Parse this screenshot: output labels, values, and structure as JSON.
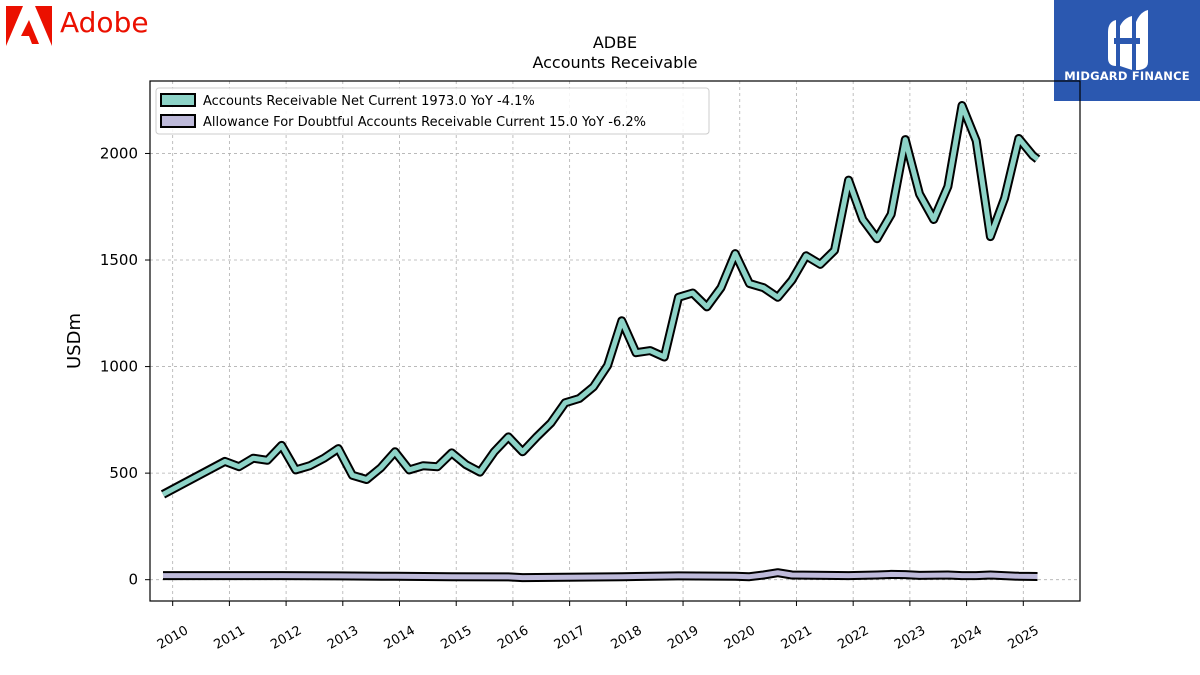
{
  "brand": {
    "company_logo_text": "Adobe",
    "company_color": "#eb1000",
    "publisher_logo_text": "MIDGARD FINANCE",
    "publisher_color": "#2b58b0"
  },
  "chart_data": {
    "type": "line",
    "title": "ADBE",
    "subtitle": "Accounts Receivable",
    "ylabel": "USDm",
    "xlabel": "",
    "xlim": [
      2009.6,
      2026.0
    ],
    "ylim": [
      -100,
      2340
    ],
    "yticks": [
      0,
      500,
      1000,
      1500,
      2000
    ],
    "xticks": [
      "2010",
      "2011",
      "2012",
      "2013",
      "2014",
      "2015",
      "2016",
      "2017",
      "2018",
      "2019",
      "2020",
      "2021",
      "2022",
      "2023",
      "2024",
      "2025"
    ],
    "grid": true,
    "legend_position": "top-left",
    "series": [
      {
        "name": "Accounts Receivable Net Current  1973.0 YoY -4.1%",
        "color": "#8dd3c7",
        "x": [
          2009.83,
          2010.92,
          2011.17,
          2011.42,
          2011.67,
          2011.92,
          2012.17,
          2012.42,
          2012.67,
          2012.92,
          2013.17,
          2013.42,
          2013.67,
          2013.92,
          2014.17,
          2014.42,
          2014.67,
          2014.92,
          2015.17,
          2015.42,
          2015.67,
          2015.92,
          2016.17,
          2016.42,
          2016.67,
          2016.92,
          2017.17,
          2017.42,
          2017.67,
          2017.92,
          2018.17,
          2018.42,
          2018.67,
          2018.92,
          2019.17,
          2019.42,
          2019.67,
          2019.92,
          2020.17,
          2020.42,
          2020.67,
          2020.92,
          2021.17,
          2021.42,
          2021.67,
          2021.92,
          2022.17,
          2022.42,
          2022.67,
          2022.92,
          2023.17,
          2023.42,
          2023.67,
          2023.92,
          2024.17,
          2024.42,
          2024.67,
          2024.92,
          2025.17,
          2025.25
        ],
        "values": [
          400,
          555,
          530,
          570,
          560,
          630,
          515,
          535,
          570,
          615,
          490,
          470,
          525,
          600,
          515,
          535,
          530,
          595,
          540,
          505,
          600,
          670,
          600,
          670,
          735,
          830,
          850,
          905,
          1005,
          1215,
          1065,
          1075,
          1045,
          1325,
          1345,
          1280,
          1370,
          1530,
          1390,
          1370,
          1325,
          1405,
          1520,
          1480,
          1545,
          1875,
          1690,
          1600,
          1715,
          2065,
          1810,
          1690,
          1845,
          2225,
          2060,
          1610,
          1790,
          2070,
          1990,
          1973
        ]
      },
      {
        "name": "Allowance For Doubtful Accounts Receivable Current  15.0 YoY -6.2%",
        "color": "#bebada",
        "x": [
          2009.83,
          2010.92,
          2011.92,
          2012.92,
          2013.92,
          2014.92,
          2015.92,
          2016.17,
          2016.92,
          2017.92,
          2018.92,
          2019.92,
          2020.17,
          2020.42,
          2020.67,
          2020.92,
          2021.92,
          2022.42,
          2022.67,
          2022.92,
          2023.17,
          2023.67,
          2023.92,
          2024.17,
          2024.42,
          2024.92,
          2025.25
        ],
        "values": [
          19,
          19,
          19,
          18,
          16,
          14,
          13,
          10,
          11,
          14,
          18,
          16,
          14,
          22,
          33,
          22,
          19,
          22,
          25,
          24,
          20,
          22,
          19,
          19,
          22,
          16,
          15
        ]
      }
    ]
  }
}
